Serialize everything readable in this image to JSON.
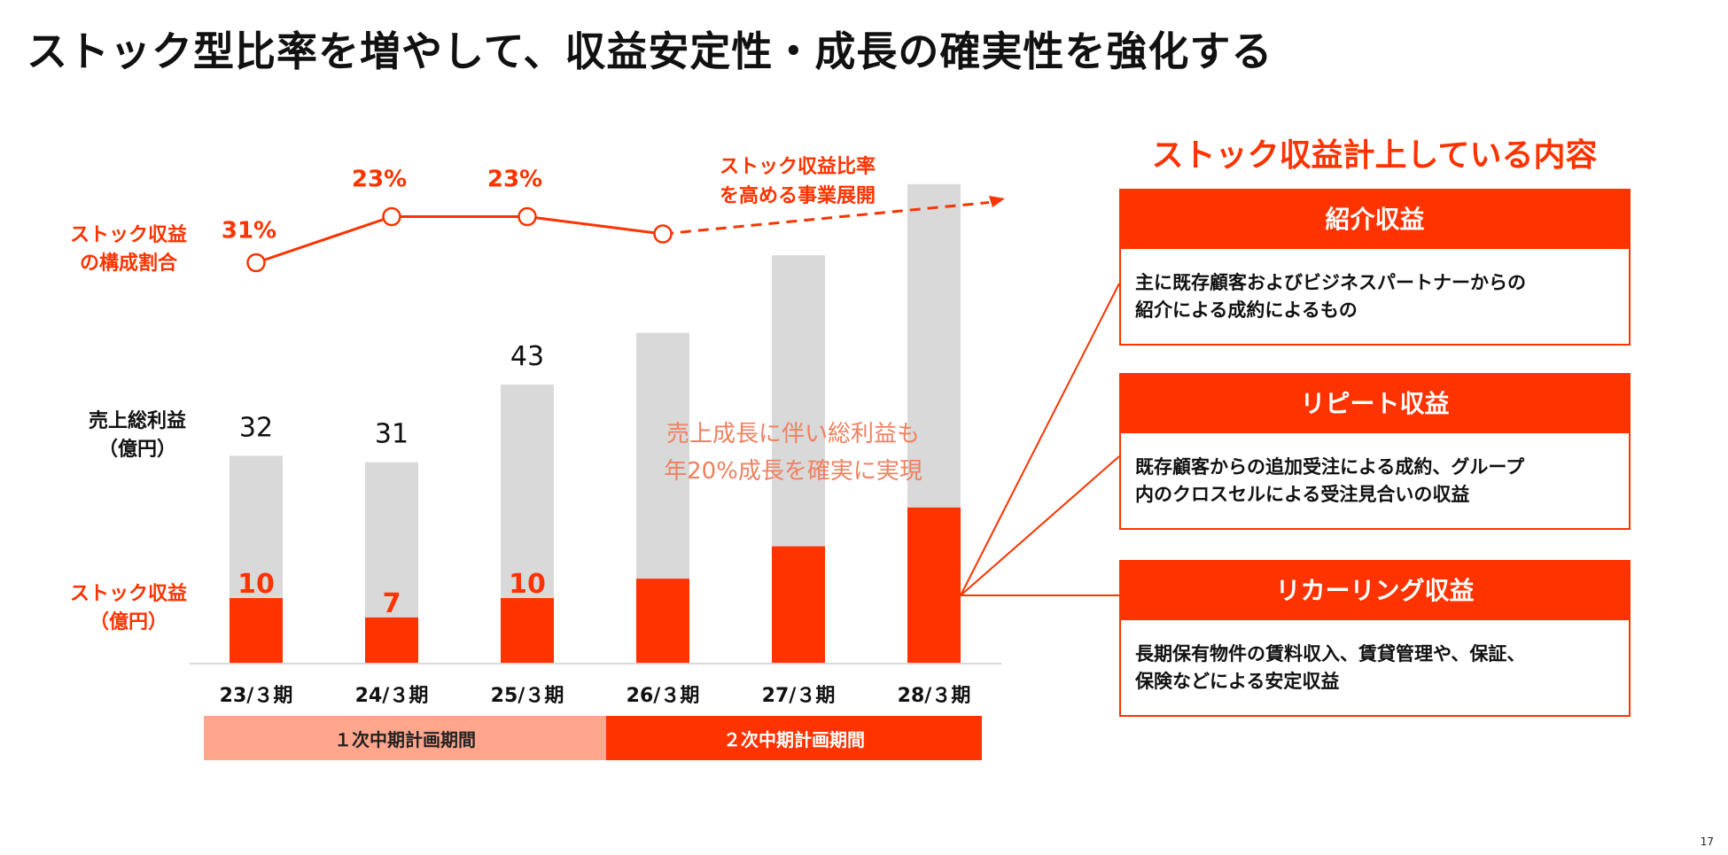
{
  "title": "ストック型比率を増やして、収益安定性・成長の確実性を強化する",
  "chart_data": {
    "type": "bar",
    "categories": [
      "23/３期",
      "24/３期",
      "25/３期",
      "26/３期",
      "27/３期",
      "28/３期"
    ],
    "series": [
      {
        "name": "売上総利益（億円）",
        "values": [
          32,
          31,
          43,
          51,
          63,
          74
        ],
        "labels": [
          "32",
          "31",
          "43",
          "",
          "",
          ""
        ]
      },
      {
        "name": "ストック収益（億円）",
        "values": [
          10,
          7,
          10,
          13,
          18,
          24
        ],
        "labels": [
          "10",
          "7",
          "10",
          "",
          "",
          ""
        ]
      }
    ],
    "line": {
      "name": "ストック収益の構成割合",
      "values": [
        31,
        23,
        23,
        26
      ],
      "labels": [
        "31%",
        "23%",
        "23%",
        ""
      ]
    },
    "ylim": [
      0,
      75
    ],
    "stack_share_label": [
      "ストック収益",
      "の構成割合"
    ],
    "gross_profit_label": [
      "売上総利益",
      "（億円）"
    ],
    "stock_revenue_label": [
      "ストック収益",
      "（億円）"
    ],
    "annotation_arrow": [
      "ストック収益比率",
      "を高める事業展開"
    ],
    "annotation_center": [
      "売上成長に伴い総利益も",
      "年20%成長を確実に実現"
    ],
    "periods": [
      "１次中期計画期間",
      "２次中期計画期間"
    ]
  },
  "colors": {
    "accent": "#ff3300",
    "gray_bar": "#d9d9d9",
    "light_accent": "#ffa68c"
  },
  "right_panel": {
    "title": "ストック収益計上している内容",
    "cards": [
      {
        "title": "紹介収益",
        "lines": [
          "主に既存顧客およびビジネスパートナーからの",
          "紹介による成約によるもの"
        ]
      },
      {
        "title": "リピート収益",
        "lines": [
          "既存顧客からの追加受注による成約、グループ",
          "内のクロスセルによる受注見合いの収益"
        ]
      },
      {
        "title": "リカーリング収益",
        "lines": [
          "長期保有物件の賃料収入、賃貸管理や、保証、",
          "保険などによる安定収益"
        ]
      }
    ]
  },
  "page_number": "17"
}
